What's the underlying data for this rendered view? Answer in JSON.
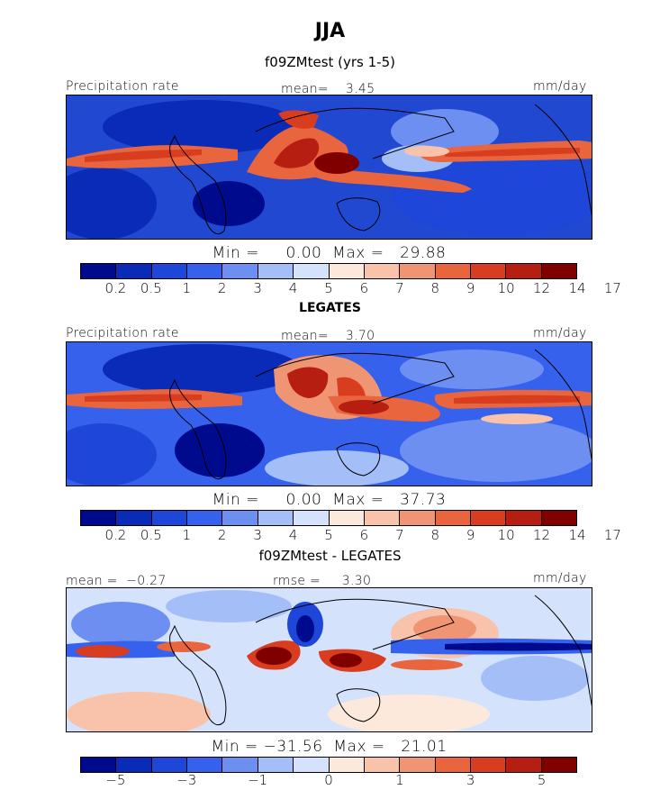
{
  "figure": {
    "title": "JJA",
    "palette": {
      "precip": [
        "#000a8c",
        "#0a2ab8",
        "#1e46d8",
        "#3561ec",
        "#6d8ff2",
        "#a4bff7",
        "#d4e3fb",
        "#fde8dc",
        "#f8c3aa",
        "#f09574",
        "#e8653e",
        "#d93d20",
        "#b51e10",
        "#800000"
      ],
      "diff": [
        "#000a8c",
        "#0a2ab8",
        "#1e46d8",
        "#3561ec",
        "#6d8ff2",
        "#a4bff7",
        "#d4e3fb",
        "#fde8dc",
        "#f8c3aa",
        "#f09574",
        "#e8653e",
        "#d93d20",
        "#b51e10",
        "#800000"
      ]
    },
    "panels": [
      {
        "title": "f09ZMtest (yrs 1-5)",
        "left_label": "Precipitation rate",
        "center_label": "mean=    3.45",
        "right_label": "mm/day",
        "stats": "Min =     0.00  Max =   29.88",
        "ticks": [
          "0.2",
          "0.5",
          "1",
          "2",
          "3",
          "4",
          "5",
          "6",
          "7",
          "8",
          "9",
          "10",
          "12",
          "14",
          "17"
        ]
      },
      {
        "title": "LEGATES",
        "left_label": "Precipitation rate",
        "center_label": "mean=    3.70",
        "right_label": "mm/day",
        "stats": "Min =     0.00  Max =   37.73",
        "ticks": [
          "0.2",
          "0.5",
          "1",
          "2",
          "3",
          "4",
          "5",
          "6",
          "7",
          "8",
          "9",
          "10",
          "12",
          "14",
          "17"
        ]
      },
      {
        "title": "f09ZMtest - LEGATES",
        "left_label": "mean =  −0.27",
        "center_label": "rmse =     3.30",
        "right_label": "mm/day",
        "stats": "Min = −31.56  Max =   21.01",
        "ticks": [
          "−5",
          "−3",
          "−1",
          "0",
          "1",
          "3",
          "5"
        ]
      }
    ]
  }
}
